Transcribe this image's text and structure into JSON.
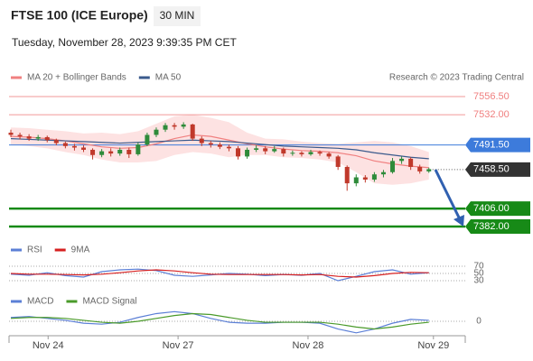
{
  "chart_data": [
    {
      "type": "candlestick",
      "title": "FTSE 100 (ICE Europe)",
      "timeframe": "30 MIN",
      "subtitle": "Tuesday, November 28, 2023 9:39:35 PM CET",
      "source": "Research © 2023 Trading Central",
      "xlim": [
        -0.2,
        50
      ],
      "ylim": [
        7365,
        7571
      ],
      "up_color": "#2e8b3a",
      "down_color": "#c0392b",
      "x": [
        0,
        1,
        2,
        3,
        4,
        5,
        6,
        7,
        8,
        9,
        10,
        11,
        12,
        13,
        14,
        15,
        16,
        17,
        18,
        19,
        20,
        21,
        22,
        23,
        24,
        25,
        26,
        27,
        28,
        29,
        30,
        31,
        32,
        33,
        34,
        35,
        36,
        37,
        38,
        39,
        40,
        41,
        42,
        43,
        44,
        45,
        46
      ],
      "open": [
        7508,
        7505,
        7503,
        7500,
        7502,
        7498,
        7494,
        7490,
        7488,
        7485,
        7478,
        7483,
        7480,
        7485,
        7479,
        7492,
        7505,
        7512,
        7518,
        7516,
        7519,
        7500,
        7494,
        7492,
        7489,
        7487,
        7476,
        7485,
        7487,
        7483,
        7486,
        7480,
        7481,
        7479,
        7482,
        7480,
        7476,
        7462,
        7440,
        7448,
        7445,
        7452,
        7455,
        7470,
        7473,
        7462,
        7456
      ],
      "high": [
        7512,
        7508,
        7506,
        7505,
        7504,
        7500,
        7496,
        7493,
        7491,
        7487,
        7486,
        7487,
        7488,
        7488,
        7495,
        7508,
        7515,
        7521,
        7521,
        7522,
        7520,
        7503,
        7497,
        7495,
        7492,
        7490,
        7488,
        7491,
        7490,
        7490,
        7488,
        7484,
        7483,
        7485,
        7484,
        7482,
        7478,
        7464,
        7452,
        7451,
        7455,
        7458,
        7474,
        7476,
        7475,
        7465,
        7461
      ],
      "low": [
        7502,
        7499,
        7497,
        7497,
        7495,
        7491,
        7487,
        7484,
        7482,
        7472,
        7475,
        7476,
        7477,
        7474,
        7477,
        7490,
        7502,
        7509,
        7512,
        7513,
        7497,
        7490,
        7488,
        7486,
        7483,
        7472,
        7473,
        7482,
        7479,
        7481,
        7476,
        7477,
        7476,
        7477,
        7477,
        7473,
        7458,
        7430,
        7436,
        7441,
        7442,
        7448,
        7453,
        7466,
        7458,
        7453,
        7454
      ],
      "close": [
        7505,
        7503,
        7500,
        7502,
        7498,
        7494,
        7490,
        7488,
        7485,
        7478,
        7483,
        7480,
        7485,
        7479,
        7492,
        7505,
        7512,
        7518,
        7516,
        7519,
        7500,
        7494,
        7492,
        7489,
        7487,
        7476,
        7485,
        7487,
        7483,
        7486,
        7480,
        7481,
        7479,
        7482,
        7480,
        7476,
        7462,
        7440,
        7448,
        7445,
        7452,
        7455,
        7470,
        7473,
        7462,
        7456,
        7459
      ],
      "series": [
        {
          "name": "MA 20 + Bollinger Bands",
          "color": "#f08080",
          "band_color": "#fde2e2",
          "x": [
            0,
            2,
            4,
            6,
            8,
            10,
            12,
            14,
            16,
            18,
            20,
            22,
            24,
            26,
            28,
            30,
            32,
            34,
            36,
            38,
            40,
            42,
            44,
            46
          ],
          "values": [
            7503,
            7502,
            7500,
            7497,
            7493,
            7489,
            7487,
            7488,
            7493,
            7500,
            7505,
            7503,
            7498,
            7493,
            7489,
            7486,
            7484,
            7483,
            7481,
            7477,
            7470,
            7466,
            7463,
            7461
          ],
          "upper": [
            7515,
            7514,
            7512,
            7510,
            7507,
            7508,
            7506,
            7510,
            7520,
            7530,
            7532,
            7528,
            7522,
            7508,
            7500,
            7499,
            7496,
            7494,
            7493,
            7495,
            7497,
            7495,
            7490,
            7482
          ],
          "lower": [
            7492,
            7490,
            7487,
            7482,
            7478,
            7472,
            7468,
            7468,
            7470,
            7478,
            7482,
            7480,
            7475,
            7478,
            7478,
            7475,
            7474,
            7472,
            7468,
            7455,
            7440,
            7438,
            7440,
            7445
          ]
        },
        {
          "name": "MA 50",
          "color": "#3a5a8c",
          "x": [
            0,
            2,
            4,
            6,
            8,
            10,
            12,
            14,
            16,
            18,
            20,
            22,
            24,
            26,
            28,
            30,
            32,
            34,
            36,
            38,
            40,
            42,
            44,
            46
          ],
          "values": [
            7500,
            7499,
            7498,
            7497,
            7496,
            7495,
            7494,
            7495,
            7496,
            7497,
            7498,
            7497,
            7496,
            7494,
            7492,
            7490,
            7489,
            7488,
            7487,
            7485,
            7481,
            7478,
            7475,
            7473
          ]
        }
      ],
      "levels": [
        {
          "value": 7556.5,
          "label": "7556.50",
          "color": "#f08080",
          "style": "text"
        },
        {
          "value": 7532,
          "label": "7532.00",
          "color": "#f08080",
          "style": "text"
        },
        {
          "value": 7491.5,
          "label": "7491.50",
          "color": "#3d7bdb",
          "style": "box"
        },
        {
          "value": 7458.5,
          "label": "7458.50",
          "color": "#333333",
          "style": "current"
        },
        {
          "value": 7406,
          "label": "7406.00",
          "color": "#178a17",
          "style": "thick"
        },
        {
          "value": 7382,
          "label": "7382.00",
          "color": "#178a17",
          "style": "thick"
        }
      ]
    },
    {
      "type": "line",
      "xlim": [
        -0.2,
        50
      ],
      "ylim": [
        10,
        90
      ],
      "yticks": [
        70,
        50,
        30
      ],
      "series": [
        {
          "name": "RSI",
          "color": "#5b7fd6",
          "x": [
            0,
            2,
            4,
            6,
            8,
            10,
            12,
            14,
            16,
            18,
            20,
            22,
            24,
            26,
            28,
            30,
            32,
            34,
            36,
            38,
            40,
            42,
            44,
            46
          ],
          "values": [
            48,
            45,
            52,
            44,
            40,
            55,
            60,
            62,
            58,
            45,
            42,
            46,
            50,
            48,
            44,
            47,
            45,
            50,
            30,
            42,
            55,
            60,
            48,
            52
          ]
        },
        {
          "name": "9MA",
          "color": "#d62020",
          "x": [
            0,
            2,
            4,
            6,
            8,
            10,
            12,
            14,
            16,
            18,
            20,
            22,
            24,
            26,
            28,
            30,
            32,
            34,
            36,
            38,
            40,
            42,
            44,
            46
          ],
          "values": [
            50,
            48,
            48,
            47,
            46,
            48,
            52,
            57,
            60,
            57,
            52,
            48,
            47,
            47,
            47,
            47,
            46,
            47,
            42,
            40,
            44,
            50,
            53,
            52
          ]
        }
      ]
    },
    {
      "type": "line",
      "xlim": [
        -0.2,
        50
      ],
      "ylim": [
        -15,
        15
      ],
      "yticks": [
        0
      ],
      "xticks": [
        {
          "value": 4.1,
          "label": "Nov 24"
        },
        {
          "value": 18.4,
          "label": "Nov 27"
        },
        {
          "value": 32.7,
          "label": "Nov 28"
        },
        {
          "value": 46.5,
          "label": "Nov 29"
        }
      ],
      "series": [
        {
          "name": "MACD",
          "color": "#5b7fd6",
          "x": [
            0,
            2,
            4,
            6,
            8,
            10,
            12,
            14,
            16,
            18,
            20,
            22,
            24,
            26,
            28,
            30,
            32,
            34,
            36,
            38,
            40,
            42,
            44,
            46
          ],
          "values": [
            4,
            5,
            3,
            1,
            -2,
            -3,
            -1,
            4,
            8,
            10,
            8,
            3,
            -1,
            -2,
            -2,
            -1,
            -1,
            -2,
            -8,
            -12,
            -8,
            -2,
            2,
            1
          ]
        },
        {
          "name": "MACD Signal",
          "color": "#4a9a2a",
          "x": [
            0,
            2,
            4,
            6,
            8,
            10,
            12,
            14,
            16,
            18,
            20,
            22,
            24,
            26,
            28,
            30,
            32,
            34,
            36,
            38,
            40,
            42,
            44,
            46
          ],
          "values": [
            3,
            4,
            4,
            3,
            1,
            -1,
            -2,
            0,
            3,
            6,
            8,
            7,
            4,
            1,
            -1,
            -1,
            -1,
            -1,
            -3,
            -6,
            -8,
            -6,
            -3,
            -1
          ]
        }
      ]
    }
  ]
}
